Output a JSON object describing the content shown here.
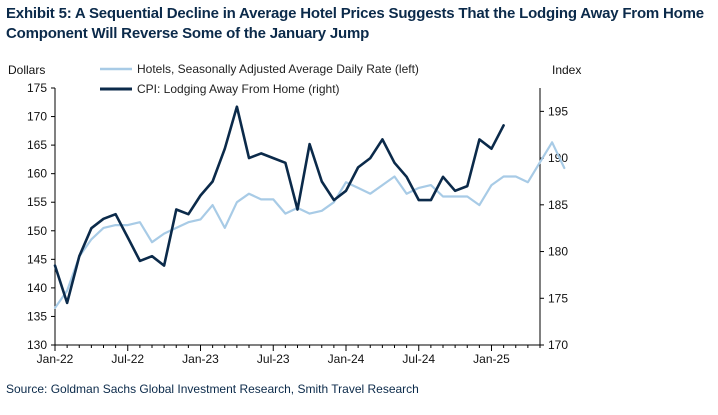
{
  "title_line1": "Exhibit 5: A Sequential Decline in Average Hotel Prices Suggests That the Lodging Away From Home",
  "title_line2": "Component Will Reverse Some of the January Jump",
  "source": "Source: Goldman Sachs Global Investment Research, Smith Travel Research",
  "chart_data": {
    "type": "line",
    "left_axis_label": "Dollars",
    "right_axis_label": "Index",
    "ylim_left": [
      130,
      175
    ],
    "yticks_left": [
      130,
      135,
      140,
      145,
      150,
      155,
      160,
      165,
      170,
      175
    ],
    "ylim_right": [
      170,
      197.5
    ],
    "yticks_right": [
      170,
      175,
      180,
      185,
      190,
      195
    ],
    "x_tick_labels": [
      "Jan-22",
      "Jul-22",
      "Jan-23",
      "Jul-23",
      "Jan-24",
      "Jul-24",
      "Jan-25"
    ],
    "x_tick_months": [
      "2022-01",
      "2022-07",
      "2023-01",
      "2023-07",
      "2024-01",
      "2024-07",
      "2025-01"
    ],
    "x_range": [
      "2022-01",
      "2025-05"
    ],
    "legend_position": "top",
    "series": [
      {
        "name": "Hotels, Seasonally Adjusted Average Daily Rate (left)",
        "axis": "left",
        "color": "#a8cbe6",
        "start": "2022-01",
        "values": [
          136.5,
          139.5,
          145.5,
          148.5,
          150.5,
          151,
          151,
          151.5,
          148,
          149.5,
          150.5,
          151.5,
          152,
          154.5,
          150.5,
          155,
          156.5,
          155.5,
          155.5,
          153,
          154,
          153,
          153.5,
          155,
          158.5,
          157.5,
          156.5,
          158,
          159.5,
          156.5,
          157.5,
          158,
          156,
          156,
          156,
          154.5,
          158,
          159.5,
          159.5,
          158.5,
          162,
          165.5,
          161
        ]
      },
      {
        "name": "CPI: Lodging Away From Home (right)",
        "axis": "right",
        "color": "#0b2a4a",
        "start": "2022-01",
        "values": [
          178.5,
          174.5,
          179.5,
          182.5,
          183.5,
          184,
          181.5,
          179,
          179.5,
          178.5,
          184.5,
          184,
          186,
          187.5,
          191,
          195.5,
          190,
          190.5,
          190,
          189.5,
          184.5,
          191.5,
          187.5,
          185.5,
          186.5,
          189,
          190,
          192,
          189.5,
          188,
          185.5,
          185.5,
          188,
          186.5,
          187,
          192,
          191,
          193.5
        ]
      }
    ]
  }
}
